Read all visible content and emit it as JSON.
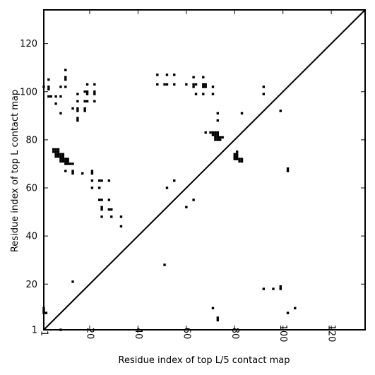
{
  "chart_data": {
    "type": "scatter",
    "title": "",
    "xlabel": "Residue index of top L/5 contact map",
    "ylabel": "Residue index of top L contact map",
    "xlim": [
      1,
      134
    ],
    "ylim": [
      1,
      134
    ],
    "x_ticks": [
      {
        "value": 1,
        "label": "1"
      },
      {
        "value": 20,
        "label": "20"
      },
      {
        "value": 40,
        "label": "40"
      },
      {
        "value": 60,
        "label": "60"
      },
      {
        "value": 80,
        "label": "80"
      },
      {
        "value": 100,
        "label": "100"
      },
      {
        "value": 120,
        "label": "120"
      }
    ],
    "y_ticks": [
      {
        "value": 1,
        "label": "1"
      },
      {
        "value": 20,
        "label": "20"
      },
      {
        "value": 40,
        "label": "40"
      },
      {
        "value": 60,
        "label": "60"
      },
      {
        "value": 80,
        "label": "80"
      },
      {
        "value": 100,
        "label": "100"
      },
      {
        "value": 120,
        "label": "120"
      }
    ],
    "grid": false,
    "marker": "square",
    "marker_color": "#000000",
    "diagonal_line": true,
    "series": [
      {
        "name": "",
        "points": [
          [
            1,
            102
          ],
          [
            3,
            105
          ],
          [
            3,
            102
          ],
          [
            3,
            101
          ],
          [
            3,
            98
          ],
          [
            4,
            98
          ],
          [
            6,
            98
          ],
          [
            6,
            95
          ],
          [
            8,
            98
          ],
          [
            8,
            102
          ],
          [
            8,
            91
          ],
          [
            10,
            109
          ],
          [
            10,
            106
          ],
          [
            10,
            105
          ],
          [
            10,
            102
          ],
          [
            13,
            93
          ],
          [
            15,
            99
          ],
          [
            15,
            96
          ],
          [
            15,
            93
          ],
          [
            15,
            92
          ],
          [
            15,
            89
          ],
          [
            15,
            88
          ],
          [
            18,
            100
          ],
          [
            18,
            96
          ],
          [
            18,
            93
          ],
          [
            18,
            92
          ],
          [
            19,
            103
          ],
          [
            19,
            100
          ],
          [
            19,
            99
          ],
          [
            19,
            96
          ],
          [
            22,
            103
          ],
          [
            22,
            100
          ],
          [
            22,
            99
          ],
          [
            22,
            96
          ],
          [
            5,
            76
          ],
          [
            6,
            76
          ],
          [
            7,
            76
          ],
          [
            5,
            75
          ],
          [
            6,
            75
          ],
          [
            7,
            75
          ],
          [
            6,
            74
          ],
          [
            7,
            74
          ],
          [
            8,
            74
          ],
          [
            9,
            74
          ],
          [
            6,
            73
          ],
          [
            7,
            73
          ],
          [
            8,
            73
          ],
          [
            9,
            73
          ],
          [
            8,
            72
          ],
          [
            9,
            72
          ],
          [
            10,
            72
          ],
          [
            11,
            72
          ],
          [
            8,
            71
          ],
          [
            9,
            71
          ],
          [
            10,
            71
          ],
          [
            11,
            71
          ],
          [
            10,
            70
          ],
          [
            11,
            70
          ],
          [
            12,
            70
          ],
          [
            13,
            70
          ],
          [
            10,
            67
          ],
          [
            13,
            67
          ],
          [
            13,
            66
          ],
          [
            17,
            66
          ],
          [
            21,
            67
          ],
          [
            21,
            66
          ],
          [
            21,
            63
          ],
          [
            21,
            60
          ],
          [
            24,
            63
          ],
          [
            25,
            63
          ],
          [
            28,
            63
          ],
          [
            24,
            60
          ],
          [
            24,
            55
          ],
          [
            25,
            55
          ],
          [
            28,
            55
          ],
          [
            25,
            52
          ],
          [
            25,
            51
          ],
          [
            28,
            51
          ],
          [
            29,
            51
          ],
          [
            25,
            48
          ],
          [
            29,
            48
          ],
          [
            33,
            48
          ],
          [
            33,
            44
          ],
          [
            13,
            21
          ],
          [
            8,
            1
          ],
          [
            48,
            107
          ],
          [
            52,
            107
          ],
          [
            55,
            107
          ],
          [
            48,
            103
          ],
          [
            51,
            103
          ],
          [
            52,
            103
          ],
          [
            55,
            103
          ],
          [
            60,
            103
          ],
          [
            63,
            106
          ],
          [
            63,
            103
          ],
          [
            64,
            103
          ],
          [
            63,
            102
          ],
          [
            67,
            106
          ],
          [
            67,
            103
          ],
          [
            68,
            103
          ],
          [
            67,
            102
          ],
          [
            68,
            102
          ],
          [
            71,
            102
          ],
          [
            64,
            99
          ],
          [
            67,
            99
          ],
          [
            71,
            99
          ],
          [
            92,
            102
          ],
          [
            92,
            99
          ],
          [
            99,
            92
          ],
          [
            73,
            91
          ],
          [
            83,
            91
          ],
          [
            73,
            88
          ],
          [
            68,
            83
          ],
          [
            70,
            83
          ],
          [
            71,
            83
          ],
          [
            72,
            83
          ],
          [
            73,
            83
          ],
          [
            71,
            82
          ],
          [
            72,
            82
          ],
          [
            73,
            82
          ],
          [
            72,
            81
          ],
          [
            73,
            81
          ],
          [
            74,
            81
          ],
          [
            75,
            81
          ],
          [
            72,
            80
          ],
          [
            73,
            80
          ],
          [
            74,
            80
          ],
          [
            81,
            75
          ],
          [
            80,
            74
          ],
          [
            81,
            74
          ],
          [
            80,
            73
          ],
          [
            81,
            73
          ],
          [
            80,
            72
          ],
          [
            81,
            72
          ],
          [
            82,
            72
          ],
          [
            83,
            72
          ],
          [
            82,
            71
          ],
          [
            83,
            71
          ],
          [
            102,
            68
          ],
          [
            102,
            67
          ],
          [
            55,
            63
          ],
          [
            52,
            60
          ],
          [
            63,
            55
          ],
          [
            60,
            52
          ],
          [
            51,
            28
          ],
          [
            92,
            18
          ],
          [
            96,
            18
          ],
          [
            99,
            19
          ],
          [
            99,
            18
          ],
          [
            105,
            10
          ],
          [
            102,
            8
          ],
          [
            71,
            10
          ],
          [
            73,
            6
          ],
          [
            73,
            5
          ],
          [
            1,
            10
          ],
          [
            1,
            9
          ],
          [
            1,
            8
          ],
          [
            2,
            8
          ]
        ]
      }
    ]
  }
}
